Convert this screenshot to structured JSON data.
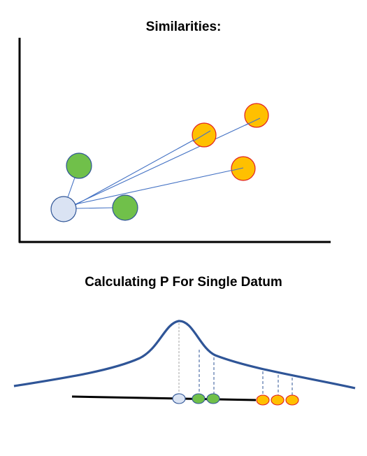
{
  "top_panel": {
    "title": "Similarities:"
  },
  "bottom_panel": {
    "title": "Calculating P For Single Datum"
  },
  "colors": {
    "axis": "#000000",
    "reference_point_fill": "#dae3f3",
    "reference_point_stroke": "#2f5597",
    "near_point_fill": "#70c04a",
    "near_point_stroke": "#2f5597",
    "far_point_fill": "#ffc000",
    "far_point_stroke": "#e02020",
    "connector_line": "#4472c4",
    "curve": "#2f5597",
    "dashed_guide": "#2f5597",
    "center_guide": "#a6a6a6"
  }
}
